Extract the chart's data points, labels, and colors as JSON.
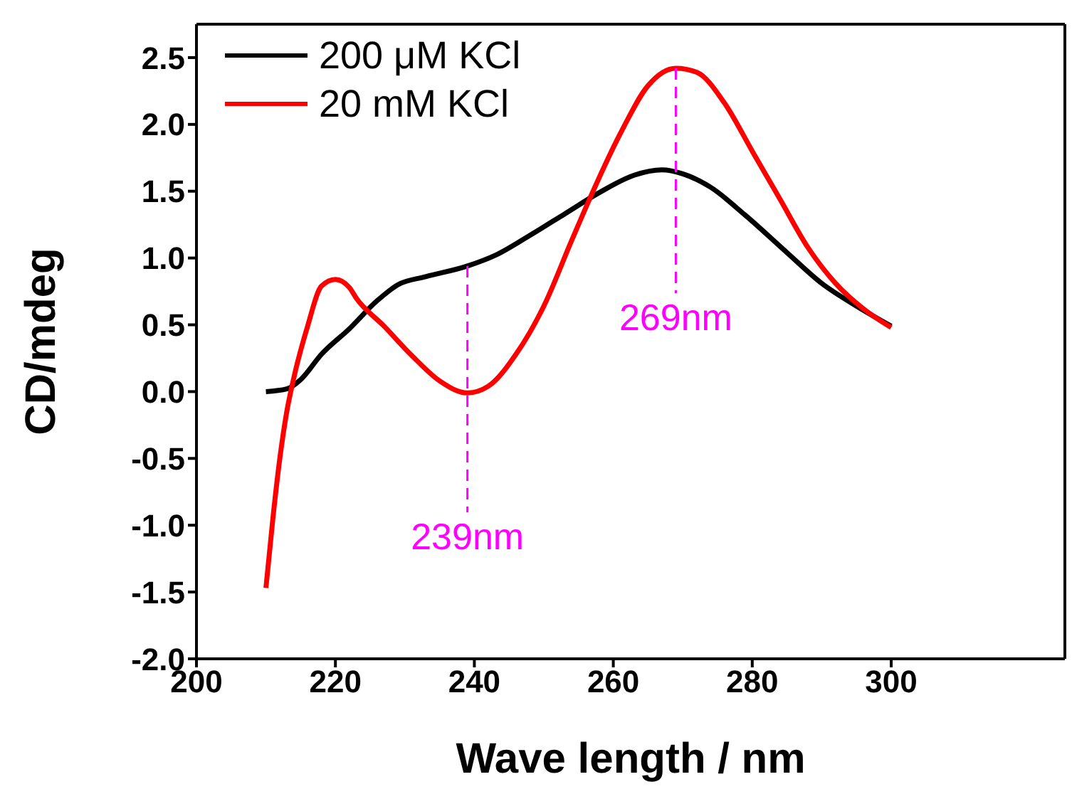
{
  "chart_data": {
    "type": "line",
    "xlabel": "Wave length / nm",
    "ylabel": "CD/mdeg",
    "xlim": [
      200,
      325
    ],
    "xticks": [
      200,
      220,
      240,
      260,
      280,
      300
    ],
    "ylim": [
      -2.0,
      2.75
    ],
    "yticks": [
      2.5,
      {
        "value": 2,
        "label": "2.0"
      },
      1.5,
      {
        "value": 1,
        "label": "1.0"
      },
      0.5,
      {
        "value": 0,
        "label": "0.0"
      },
      -0.5,
      {
        "value": -1,
        "label": "-1.0"
      },
      -1.5,
      {
        "value": -2,
        "label": "-2.0"
      }
    ],
    "legend": "top left",
    "grid": false,
    "marker": "none",
    "line_style": "solid",
    "series": [
      {
        "name": "200 μM KCl",
        "color": "#000000",
        "x": [
          210,
          213,
          215,
          218,
          222,
          226,
          229,
          233,
          239,
          243,
          248,
          253,
          258,
          263,
          267,
          270,
          274,
          279,
          285,
          290,
          295,
          300
        ],
        "values": [
          0.0,
          0.02,
          0.09,
          0.28,
          0.47,
          0.68,
          0.8,
          0.86,
          0.94,
          1.02,
          1.17,
          1.33,
          1.49,
          1.62,
          1.66,
          1.63,
          1.53,
          1.32,
          1.04,
          0.81,
          0.64,
          0.49
        ]
      },
      {
        "name": "20 mM KCl",
        "color": "#ff0000",
        "x": [
          210,
          211,
          212,
          213,
          214,
          216,
          218,
          220,
          222,
          223,
          227,
          231,
          235,
          239,
          242,
          246,
          250,
          254,
          257,
          261,
          265,
          269,
          272,
          276,
          280,
          284,
          288,
          292,
          296,
          300
        ],
        "values": [
          -1.47,
          -0.95,
          -0.5,
          -0.15,
          0.1,
          0.49,
          0.79,
          0.84,
          0.78,
          0.7,
          0.49,
          0.27,
          0.08,
          -0.01,
          0.04,
          0.28,
          0.64,
          1.13,
          1.49,
          1.93,
          2.29,
          2.42,
          2.39,
          2.16,
          1.8,
          1.44,
          1.08,
          0.81,
          0.62,
          0.48
        ]
      }
    ],
    "ref_lines": [
      {
        "axis": "x",
        "value": 239,
        "label": "239nm",
        "color": "#ff00ff",
        "line_style": "dashed"
      },
      {
        "axis": "x",
        "value": 269,
        "label": "269nm",
        "color": "#ff00ff",
        "line_style": "dashed"
      }
    ]
  }
}
